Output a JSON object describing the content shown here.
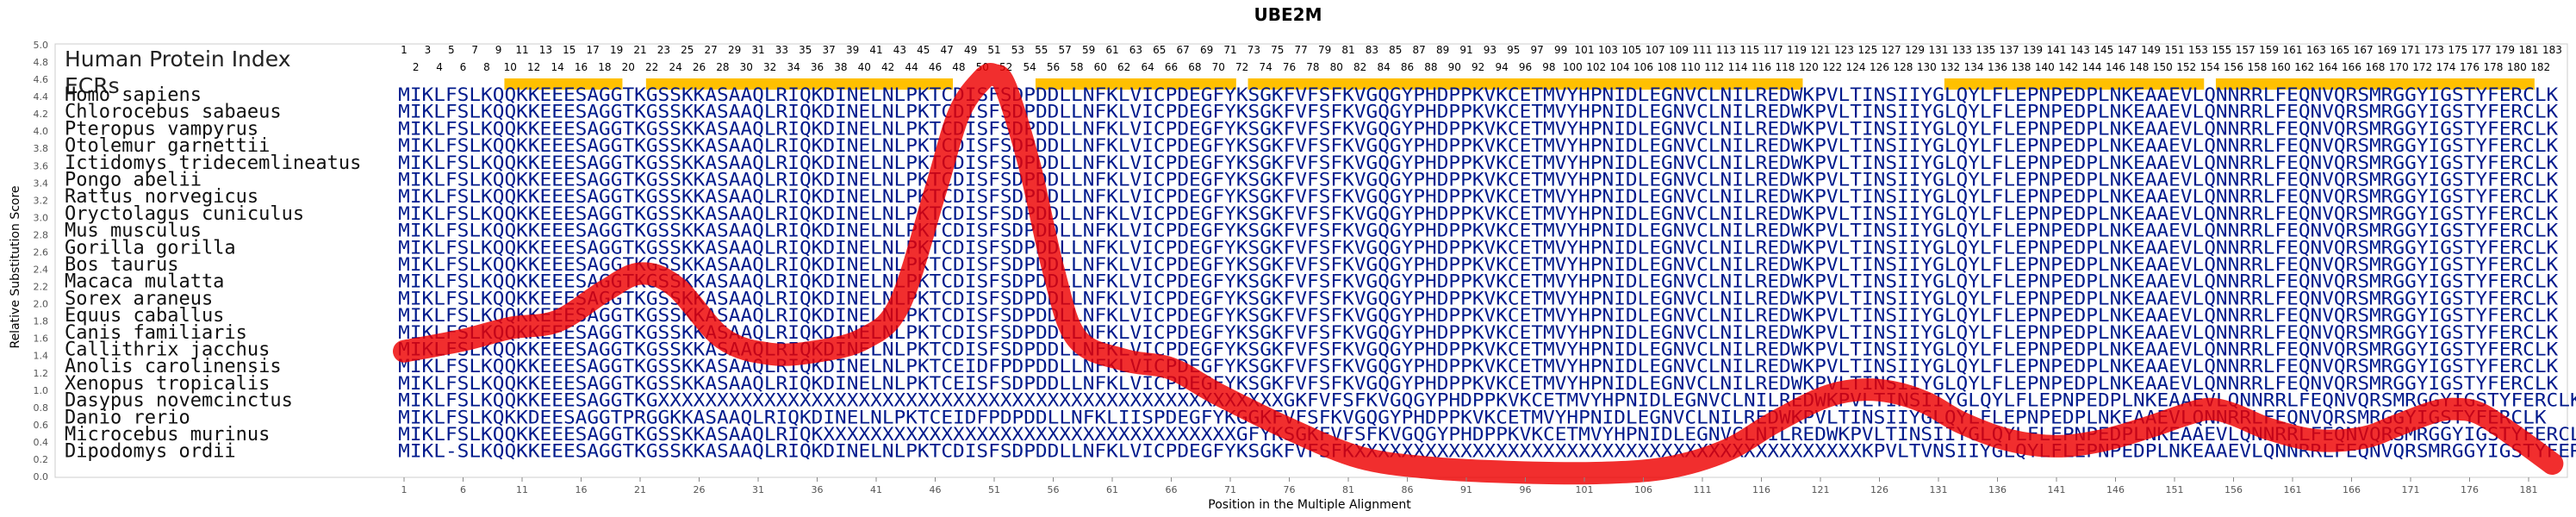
{
  "chart_data": {
    "type": "line",
    "title": "UBE2M",
    "xlabel": "Position in the Multiple Alignment",
    "ylabel": "Relative Substitution Score",
    "ylim": [
      0,
      5.0
    ],
    "xlim": [
      1,
      183
    ],
    "yticks": [
      "0.0",
      "0.2",
      "0.4",
      "0.6",
      "0.8",
      "1.0",
      "1.2",
      "1.4",
      "1.6",
      "1.8",
      "2.0",
      "2.2",
      "2.4",
      "2.6",
      "2.8",
      "3.0",
      "3.2",
      "3.4",
      "3.6",
      "3.8",
      "4.0",
      "4.2",
      "4.4",
      "4.6",
      "4.8",
      "5.0"
    ],
    "xticks": [
      1,
      6,
      11,
      16,
      21,
      26,
      31,
      36,
      41,
      46,
      51,
      56,
      61,
      66,
      71,
      76,
      81,
      86,
      91,
      96,
      101,
      106,
      111,
      116,
      121,
      126,
      131,
      136,
      141,
      146,
      151,
      156,
      161,
      166,
      171,
      176,
      181
    ],
    "grid": false,
    "line_color": "#ee0000",
    "curve": {
      "x": [
        1,
        6,
        10,
        14,
        18,
        21,
        24,
        28,
        32,
        36,
        40,
        43,
        46,
        48,
        50,
        51,
        52,
        54,
        56,
        58,
        62,
        66,
        70,
        76,
        82,
        88,
        95,
        102,
        108,
        113,
        117,
        121,
        124,
        127,
        130,
        133,
        137,
        141,
        145,
        149,
        152,
        154,
        156,
        159,
        163,
        167,
        170,
        173,
        175,
        177,
        180,
        183
      ],
      "y": [
        1.45,
        1.58,
        1.72,
        1.8,
        2.15,
        2.35,
        2.2,
        1.6,
        1.42,
        1.45,
        1.6,
        2.0,
        3.3,
        4.2,
        4.6,
        4.65,
        4.5,
        3.6,
        2.4,
        1.6,
        1.35,
        1.25,
        0.95,
        0.55,
        0.22,
        0.1,
        0.05,
        0.04,
        0.1,
        0.3,
        0.62,
        0.9,
        1.0,
        0.98,
        0.85,
        0.62,
        0.42,
        0.35,
        0.42,
        0.58,
        0.72,
        0.78,
        0.72,
        0.55,
        0.42,
        0.45,
        0.6,
        0.75,
        0.78,
        0.72,
        0.45,
        0.15
      ]
    }
  },
  "index_label": "Human Protein Index",
  "ecr_label": "ECRs",
  "index_odd": [
    1,
    3,
    5,
    7,
    9,
    11,
    13,
    15,
    17,
    19,
    21,
    23,
    25,
    27,
    29,
    31,
    33,
    35,
    37,
    39,
    41,
    43,
    45,
    47,
    49,
    51,
    53,
    55,
    57,
    59,
    61,
    63,
    65,
    67,
    69,
    71,
    73,
    75,
    77,
    79,
    81,
    83,
    85,
    87,
    89,
    91,
    93,
    95,
    97,
    99,
    101,
    103,
    105,
    107,
    109,
    111,
    113,
    115,
    117,
    119,
    121,
    123,
    125,
    127,
    129,
    131,
    133,
    135,
    137,
    139,
    141,
    143,
    145,
    147,
    149,
    151,
    153,
    155,
    157,
    159,
    161,
    163,
    165,
    167,
    169,
    171,
    173,
    175,
    177,
    179,
    181,
    183
  ],
  "index_even": [
    2,
    4,
    6,
    8,
    10,
    12,
    14,
    16,
    18,
    20,
    22,
    24,
    26,
    28,
    30,
    32,
    34,
    36,
    38,
    40,
    42,
    44,
    46,
    48,
    50,
    52,
    54,
    56,
    58,
    60,
    62,
    64,
    66,
    68,
    70,
    72,
    74,
    76,
    78,
    80,
    82,
    84,
    86,
    88,
    90,
    92,
    94,
    96,
    98,
    100,
    102,
    104,
    106,
    108,
    110,
    112,
    114,
    116,
    118,
    120,
    122,
    124,
    126,
    128,
    130,
    132,
    134,
    136,
    138,
    140,
    142,
    144,
    146,
    148,
    150,
    152,
    154,
    156,
    158,
    160,
    162,
    164,
    166,
    168,
    170,
    172,
    174,
    176,
    178,
    180,
    182
  ],
  "ecrs": [
    [
      10,
      19
    ],
    [
      22,
      47
    ],
    [
      55,
      71
    ],
    [
      73,
      119
    ],
    [
      132,
      153
    ],
    [
      155,
      181
    ]
  ],
  "ecr_color": "#ffc000",
  "species": [
    {
      "name": "Homo sapiens",
      "seq": "MIKLFSLKQQKKEEESAGGTKGSSKKASAAQLRIQKDINELNLPKTCDISFSDPDDLLNFKLVICPDEGFYKSGKFVFSFKVGQGYPHDPPKVKCETMVYHPNIDLEGNVCLNILREDWKPVLTINSIIYGLQYLFLEPNPEDPLNKEAAEVLQNNRRLFEQNVQRSMRGGYIGSTYFERCLK"
    },
    {
      "name": "Chlorocebus sabaeus",
      "seq": "MIKLFSLKQQKKEEESAGGTKGSSKKASAAQLRIQKDINELNLPKTCDISFSDPDDLLNFKLVICPDEGFYKSGKFVFSFKVGQGYPHDPPKVKCETMVYHPNIDLEGNVCLNILREDWKPVLTINSIIYGLQYLFLEPNPEDPLNKEAAEVLQNNRRLFEQNVQRSMRGGYIGSTYFERCLK"
    },
    {
      "name": "Pteropus vampyrus",
      "seq": "MIKLFSLKQQKKEEESAGGTKGSSKKASAAQLRIQKDINELNLPKTCDISFSDPDDLLNFKLVICPDEGFYKSGKFVFSFKVGQGYPHDPPKVKCETMVYHPNIDLEGNVCLNILREDWKPVLTINSIIYGLQYLFLEPNPEDPLNKEAAEVLQNNRRLFEQNVQRSMRGGYIGSTYFERCLK"
    },
    {
      "name": "Otolemur garnettii",
      "seq": "MIKLFSLKQQKKEEESAGGTKGSSKKASAAQLRIQKDINELNLPKTCDISFSDPDDLLNFKLVICPDEGFYKSGKFVFSFKVGQGYPHDPPKVKCETMVYHPNIDLEGNVCLNILREDWKPVLTINSIIYGLQYLFLEPNPEDPLNKEAAEVLQNNRRLFEQNVQRSMRGGYIGSTYFERCLK"
    },
    {
      "name": "Ictidomys tridecemlineatus",
      "seq": "MIKLFSLKQQKKEEESAGGTKGSSKKASAAQLRIQKDINELNLPKTCDISFSDPDDLLNFKLVICPDEGFYKSGKFVFSFKVGQGYPHDPPKVKCETMVYHPNIDLEGNVCLNILREDWKPVLTINSIIYGLQYLFLEPNPEDPLNKEAAEVLQNNRRLFEQNVQRSMRGGYIGSTYFERCLK"
    },
    {
      "name": "Pongo abelii",
      "seq": "MIKLFSLKQQKKEEESAGGTKGSSKKASAAQLRIQKDINELNLPKTCDISFSDPDDLLNFKLVICPDEGFYKSGKFVFSFKVGQGYPHDPPKVKCETMVYHPNIDLEGNVCLNILREDWKPVLTINSIIYGLQYLFLEPNPEDPLNKEAAEVLQNNRRLFEQNVQRSMRGGYIGSTYFERCLK"
    },
    {
      "name": "Rattus norvegicus",
      "seq": "MIKLFSLKQQKKEEESAGGTKGSSKKASAAQLRIQKDINELNLPKTCDISFSDPDDLLNFKLVICPDEGFYKSGKFVFSFKVGQGYPHDPPKVKCETMVYHPNIDLEGNVCLNILREDWKPVLTINSIIYGLQYLFLEPNPEDPLNKEAAEVLQNNRRLFEQNVQRSMRGGYIGSTYFERCLK"
    },
    {
      "name": "Oryctolagus cuniculus",
      "seq": "MIKLFSLKQQKKEEESAGGTKGSSKKASAAQLRIQKDINELNLPKTCDISFSDPDDLLNFKLVICPDEGFYKSGKFVFSFKVGQGYPHDPPKVKCETMVYHPNIDLEGNVCLNILREDWKPVLTINSIIYGLQYLFLEPNPEDPLNKEAAEVLQNNRRLFEQNVQRSMRGGYIGSTYFERCLK"
    },
    {
      "name": "Mus musculus",
      "seq": "MIKLFSLKQQKKEEESAGGTKGSSKKASAAQLRIQKDINELNLPKTCDISFSDPDDLLNFKLVICPDEGFYKSGKFVFSFKVGQGYPHDPPKVKCETMVYHPNIDLEGNVCLNILREDWKPVLTINSIIYGLQYLFLEPNPEDPLNKEAAEVLQNNRRLFEQNVQRSMRGGYIGSTYFERCLK"
    },
    {
      "name": "Gorilla gorilla",
      "seq": "MIKLFSLKQQKKEEESAGGTKGSSKKASAAQLRIQKDINELNLPKTCDISFSDPDDLLNFKLVICPDEGFYKSGKFVFSFKVGQGYPHDPPKVKCETMVYHPNIDLEGNVCLNILREDWKPVLTINSIIYGLQYLFLEPNPEDPLNKEAAEVLQNNRRLFEQNVQRSMRGGYIGSTYFERCLK"
    },
    {
      "name": "Bos taurus",
      "seq": "MIKLFSLKQQKKEEESAGGTKGSSKKASAAQLRIQKDINELNLPKTCDISFSDPDDLLNFKLVICPDEGFYKSGKFVFSFKVGQGYPHDPPKVKCETMVYHPNIDLEGNVCLNILREDWKPVLTINSIIYGLQYLFLEPNPEDPLNKEAAEVLQNNRRLFEQNVQRSMRGGYIGSTYFERCLK"
    },
    {
      "name": "Macaca mulatta",
      "seq": "MIKLFSLKQQKKEEESAGGTKGSSKKASAAQLRIQKDINELNLPKTCDISFSDPDDLLNFKLVICPDEGFYKSGKFVFSFKVGQGYPHDPPKVKCETMVYHPNIDLEGNVCLNILREDWKPVLTINSIIYGLQYLFLEPNPEDPLNKEAAEVLQNNRRLFEQNVQRSMRGGYIGSTYFERCLK"
    },
    {
      "name": "Sorex araneus",
      "seq": "MIKLFSLKQQKKEEESAGGTKGSSKKASAAQLRIQKDINELNLPKTCDISFSDPDDLLNFKLVICPDEGFYKSGKFVFSFKVGQGYPHDPPKVKCETMVYHPNIDLEGNVCLNILREDWKPVLTINSIIYGLQYLFLEPNPEDPLNKEAAEVLQNNRRLFEQNVQRSMRGGYIGSTYFERCLK"
    },
    {
      "name": "Equus caballus",
      "seq": "MIKLFSLKQQKKEEESAGGTKGSSKKASAAQLRIQKDINELNLPKTCDISFSDPDDLLNFKLVICPDEGFYKSGKFVFSFKVGQGYPHDPPKVKCETMVYHPNIDLEGNVCLNILREDWKPVLTINSIIYGLQYLFLEPNPEDPLNKEAAEVLQNNRRLFEQNVQRSMRGGYIGSTYFERCLK"
    },
    {
      "name": "Canis familiaris",
      "seq": "MIKLFSLKQQKKEEESAGGTKGSSKKASAAQLRIQKDINELNLPKTCDISFSDPDDLLNFKLVICPDEGFYKSGKFVFSFKVGQGYPHDPPKVKCETMVYHPNIDLEGNVCLNILREDWKPVLTINSIIYGLQYLFLEPNPEDPLNKEAAEVLQNNRRLFEQNVQRSMRGGYIGSTYFERCLK"
    },
    {
      "name": "Callithrix jacchus",
      "seq": "MIKLFSLKQQKKEEESAGGTKGSSKKASAAQLRIQKDINELNLPKTCDISFSDPDDLLNFKLVICPDEGFYKSGKFVFSFKVGQGYPHDPPKVKCETMVYHPNIDLEGNVCLNILREDWKPVLTINSIIYGLQYLFLEPNPEDPLNKEAAEVLQNNRRLFEQNVQRSMRGGYIGSTYFERCLK"
    },
    {
      "name": "Anolis carolinensis",
      "seq": "MIKLFSLKQQKKEEESAGGTKGSSKKASAAQLRIQKDINELNLPKTCEIDFPDPDDLLNFKLVICPDEGFYKSGKFVFSFKVGQGYPHDPPKVKCETMVYHPNIDLEGNVCLNILREDWKPVLTINSIIYGLQYLFLEPNPEDPLNKEAAEVLQNNRRLFEQNVQRSMRGGYIGSTYFERCLK"
    },
    {
      "name": "Xenopus tropicalis",
      "seq": "MIKLFSLKQQKKEEESAGGTKGSSKKASAAQLRIQKDINELNLPKTCEISFSDPDDLLNFKLVICPDEGFYKSGKFVFSFKVGQGYPHDPPKVKCETMVYHPNIDLEGNVCLNILREDWKPVLTINSIIYGLQYLFLEPNPEDPLNKEAAEVLQNNRRLFEQNVQRSMRGGYIGSTYFERCLK"
    },
    {
      "name": "Dasypus novemcinctus",
      "seq": "MIKLFSLKQQKKEEESAGGTKGXXXXXXXXXXXXXXXXXXXXXXXXXXXXXXXXXXXXXXXXXXXXXXXXXXXXXGKFVFSFKVGQGYPHDPPKVKCETMVYHPNIDLEGNVCLNILREDWKPVLTINSIIYGLQYLFLEPNPEDPLNKEAAEVLQNNRRLFEQNVQRSMRGGYIGSTYFERCLK"
    },
    {
      "name": "Danio rerio",
      "seq": "MIKLFSLKQKKDEESAGGTPRGGKKASAAQLRIQKDINELNLPKTCEIDFPDPDDLLNFKLIISPDEGFYKGGKFVFSFKVGQGYPHDPPKVKCETMVYHPNIDLEGNVCLNILREDWKPVLTINSIIYGLQYLFLEPNPEDPLNKEAAEVLQNNRRLFEQNVQRSMRGGYIGSTYFERCLK"
    },
    {
      "name": "Microcebus murinus",
      "seq": "MIKLFSLKQQKKEEESAGGTKGSSKKASAAQLRIQKXXXXXXXXXXXXXXXXXXXXXXXXXXXXXXXXXXXGFYKSGKFVFSFKVGQGYPHDPPKVKCETMVYHPNIDLEGNVCLNILREDWKPVLTINSIIYGLQYLFLEPNPEDPLNKEAAEVLQNNRRLFEQNVQRSMRGGYIGSTYFERCLK"
    },
    {
      "name": "Dipodomys ordii",
      "seq": "MIKL-SLKQQKKEEESAGGTKGSSKKASAAQLRIQKDINELNLPKTCDISFSDPDDLLNFKLVICPDEGFYKSGKFVFSFKXXXXXXXXXXXXXXXXXXXXXXXXXXXXXXXXXXXXXXXXXXXKPVLTVNSIIYGLQYLFLEPNPEDPLNKEAAEVLQNNRRLFEQNVQRSMRGGYIGSTYFERCLK"
    }
  ]
}
